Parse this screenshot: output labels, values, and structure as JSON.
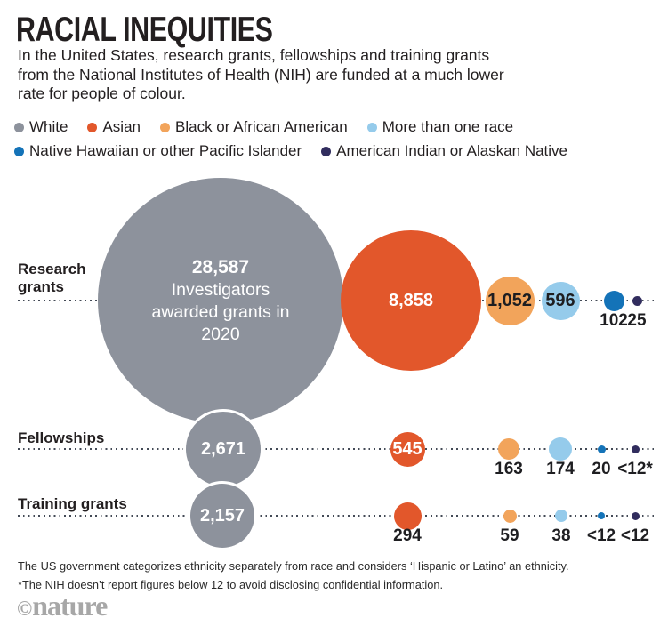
{
  "title": "RACIAL INEQUITIES",
  "subtitle": "In the United States, research grants, fellowships and training grants from the National Institutes of Health (NIH) are funded at a much lower rate for people of colour.",
  "colors": {
    "white": "#8D929C",
    "asian": "#E2572B",
    "black_aa": "#F2A45B",
    "multi": "#95CBEB",
    "pacific": "#1473B8",
    "native": "#312D5E"
  },
  "legend": {
    "rows": [
      [
        {
          "label": "White",
          "color": "white"
        },
        {
          "label": "Asian",
          "color": "asian"
        },
        {
          "label": "Black or African American",
          "color": "black_aa"
        },
        {
          "label": "More than one race",
          "color": "multi"
        }
      ],
      [
        {
          "label": "Native Hawaiian or other Pacific Islander",
          "color": "pacific"
        },
        {
          "label": "American Indian or Alaskan Native",
          "color": "native"
        }
      ]
    ]
  },
  "chart_data": {
    "type": "bubble",
    "title": "RACIAL INEQUITIES",
    "categories": [
      "White",
      "Asian",
      "Black or African American",
      "More than one race",
      "Native Hawaiian or other Pacific Islander",
      "American Indian or Alaskan Native"
    ],
    "rows": [
      {
        "label": "Research grants",
        "annotation": "Investigators awarded grants in 2020",
        "values": [
          28587,
          8858,
          1052,
          596,
          102,
          25
        ],
        "display": [
          "28,587",
          "8,858",
          "1,052",
          "596",
          "102",
          "25"
        ]
      },
      {
        "label": "Fellowships",
        "values": [
          2671,
          545,
          163,
          174,
          20,
          "<12"
        ],
        "display": [
          "2,671",
          "545",
          "163",
          "174",
          "20",
          "<12*"
        ]
      },
      {
        "label": "Training grants",
        "values": [
          2157,
          294,
          59,
          38,
          "<12",
          "<12"
        ],
        "display": [
          "2,157",
          "294",
          "59",
          "38",
          "<12",
          "<12"
        ]
      }
    ],
    "legend_position": "top",
    "notes": "Bubble area proportional to number of awards"
  },
  "footnotes": [
    "The US government categorizes ethnicity separately from race and considers ‘Hispanic or Latino’ an ethnicity.",
    "*The NIH doesn’t report figures below 12 to avoid disclosing confidential information."
  ],
  "logo": {
    "copyright": "©",
    "name": "nature"
  }
}
